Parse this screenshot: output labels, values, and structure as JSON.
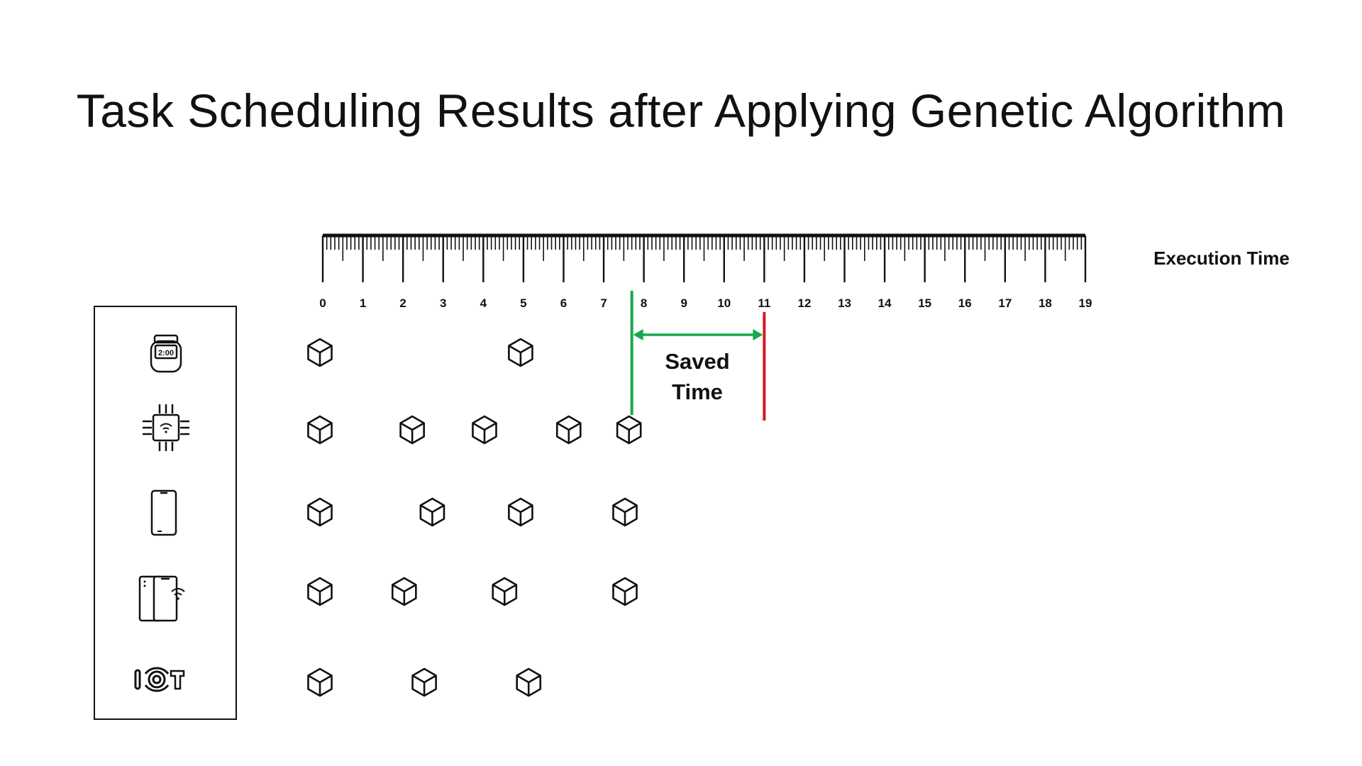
{
  "slide": {
    "title": "Task Scheduling Results after Applying Genetic Algorithm"
  },
  "axis": {
    "label": "Execution Time",
    "ticks": [
      "0",
      "1",
      "2",
      "3",
      "4",
      "5",
      "6",
      "7",
      "8",
      "9",
      "10",
      "11",
      "12",
      "13",
      "14",
      "15",
      "16",
      "17",
      "18",
      "19"
    ]
  },
  "annotation": {
    "saved_line1": "Saved",
    "saved_line2": "Time",
    "ga_makespan": 7.7,
    "baseline_makespan": 11,
    "ga_color": "#17a84a",
    "baseline_color": "#d9181f"
  },
  "devices": [
    {
      "name": "smartwatch",
      "icon": "smartwatch-icon",
      "watch_text": "2:00",
      "tasks": [
        0,
        5
      ]
    },
    {
      "name": "iot-chip",
      "icon": "wifi-chip-icon",
      "tasks": [
        0,
        2.3,
        4.1,
        6.2,
        7.7
      ]
    },
    {
      "name": "smartphone",
      "icon": "smartphone-icon",
      "tasks": [
        0,
        2.8,
        5,
        7.6
      ]
    },
    {
      "name": "dual-phone",
      "icon": "dual-phone-wifi-icon",
      "tasks": [
        0,
        2.1,
        4.6,
        7.6
      ]
    },
    {
      "name": "iot-device",
      "icon": "iot-logo-icon",
      "tasks": [
        0,
        2.6,
        5.2
      ]
    }
  ]
}
